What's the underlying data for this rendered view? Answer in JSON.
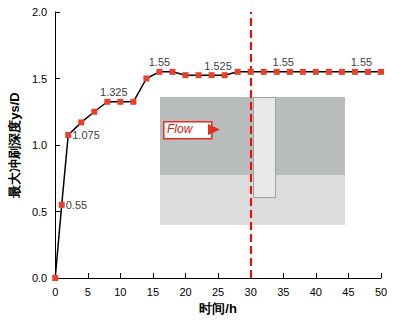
{
  "chart_data": {
    "type": "line",
    "x_label": "时间/h",
    "y_label": "最大冲刷深度ys/D",
    "x": [
      0,
      1,
      2,
      4,
      6,
      8,
      10,
      12,
      14,
      16,
      18,
      20,
      22,
      24,
      26,
      28,
      30,
      32,
      34,
      36,
      38,
      40,
      42,
      44,
      46,
      48,
      50
    ],
    "values": [
      0,
      0.55,
      1.075,
      1.17,
      1.25,
      1.325,
      1.325,
      1.325,
      1.5,
      1.55,
      1.55,
      1.525,
      1.525,
      1.525,
      1.525,
      1.55,
      1.55,
      1.55,
      1.55,
      1.55,
      1.55,
      1.55,
      1.55,
      1.55,
      1.55,
      1.55,
      1.55
    ],
    "color": "#000000",
    "marker": "square",
    "marker_color": "#e8412c",
    "xlim": [
      0,
      50
    ],
    "xticks": [
      0,
      5,
      10,
      15,
      20,
      25,
      30,
      35,
      40,
      45,
      50
    ],
    "ylim": [
      0,
      2.0
    ],
    "yticks": [
      {
        "value": 0,
        "label": "0.0"
      },
      {
        "value": 0.5,
        "label": "0.5"
      },
      {
        "value": 1.0,
        "label": "1.0"
      },
      {
        "value": 1.5,
        "label": "1.5"
      },
      {
        "value": 2.0,
        "label": "2.0"
      }
    ],
    "grid": false,
    "annotations": [
      {
        "x": 1,
        "y": 0.55,
        "text": "0.55"
      },
      {
        "x": 2,
        "y": 1.075,
        "text": "1.075"
      },
      {
        "x": 9,
        "y": 1.325,
        "text": "1.325"
      },
      {
        "x": 16,
        "y": 1.55,
        "text": "1.55"
      },
      {
        "x": 25,
        "y": 1.525,
        "text": "1.525"
      },
      {
        "x": 35,
        "y": 1.55,
        "text": "1.55"
      },
      {
        "x": 47,
        "y": 1.55,
        "text": "1.55"
      }
    ],
    "reference_line": {
      "x": 30,
      "color": "#ff0000",
      "line_style": "dashed"
    },
    "inset": {
      "label": "Flow"
    }
  }
}
